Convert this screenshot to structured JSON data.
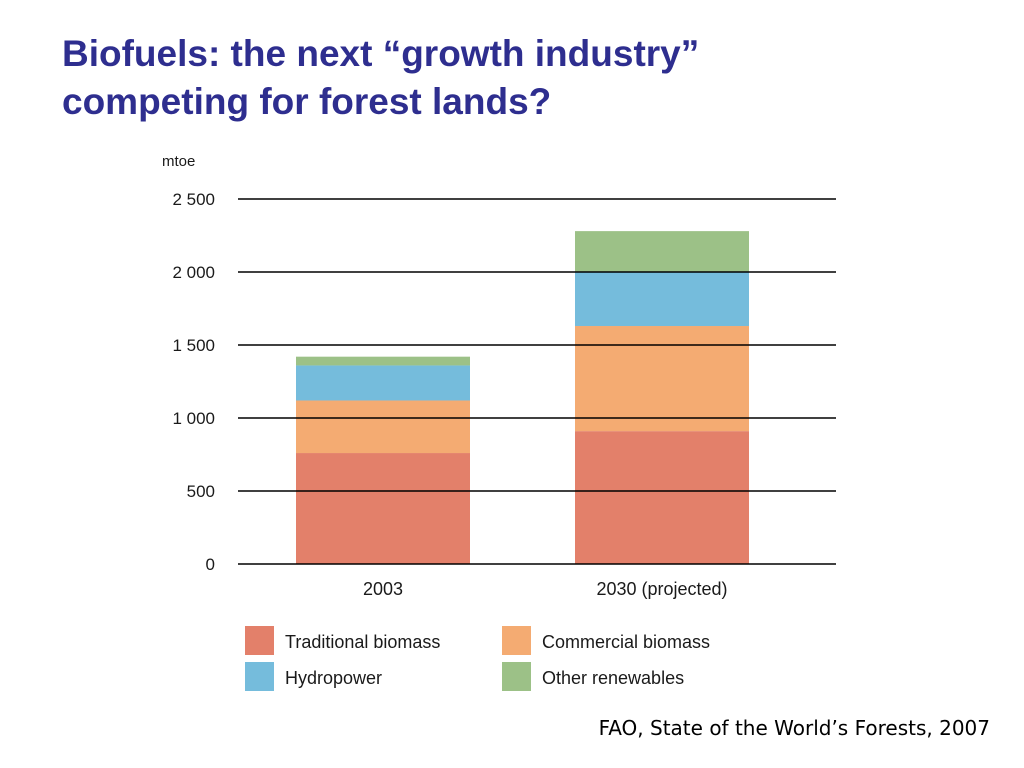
{
  "slide": {
    "title_line1": "Biofuels:  the next “growth industry”",
    "title_line2": "competing for forest lands?",
    "source": "FAO, State of the World’s Forests, 2007"
  },
  "chart_data": {
    "type": "bar",
    "stacked": true,
    "title": "",
    "xlabel": "",
    "ylabel": "mtoe",
    "ylim": [
      0,
      2500
    ],
    "yticks": [
      0,
      500,
      1000,
      1500,
      2000,
      2500
    ],
    "ytick_labels": [
      "0",
      "500",
      "1 000",
      "1 500",
      "2 000",
      "2 500"
    ],
    "grid": true,
    "legend_position": "bottom",
    "categories": [
      "2003",
      "2030 (projected)"
    ],
    "series": [
      {
        "name": "Traditional biomass",
        "color": "#e3806a",
        "values": [
          760,
          910
        ]
      },
      {
        "name": "Commercial biomass",
        "color": "#f4ab72",
        "values": [
          360,
          720
        ]
      },
      {
        "name": "Hydropower",
        "color": "#75bcdc",
        "values": [
          240,
          370
        ]
      },
      {
        "name": "Other renewables",
        "color": "#9cc187",
        "values": [
          60,
          280
        ]
      }
    ]
  }
}
